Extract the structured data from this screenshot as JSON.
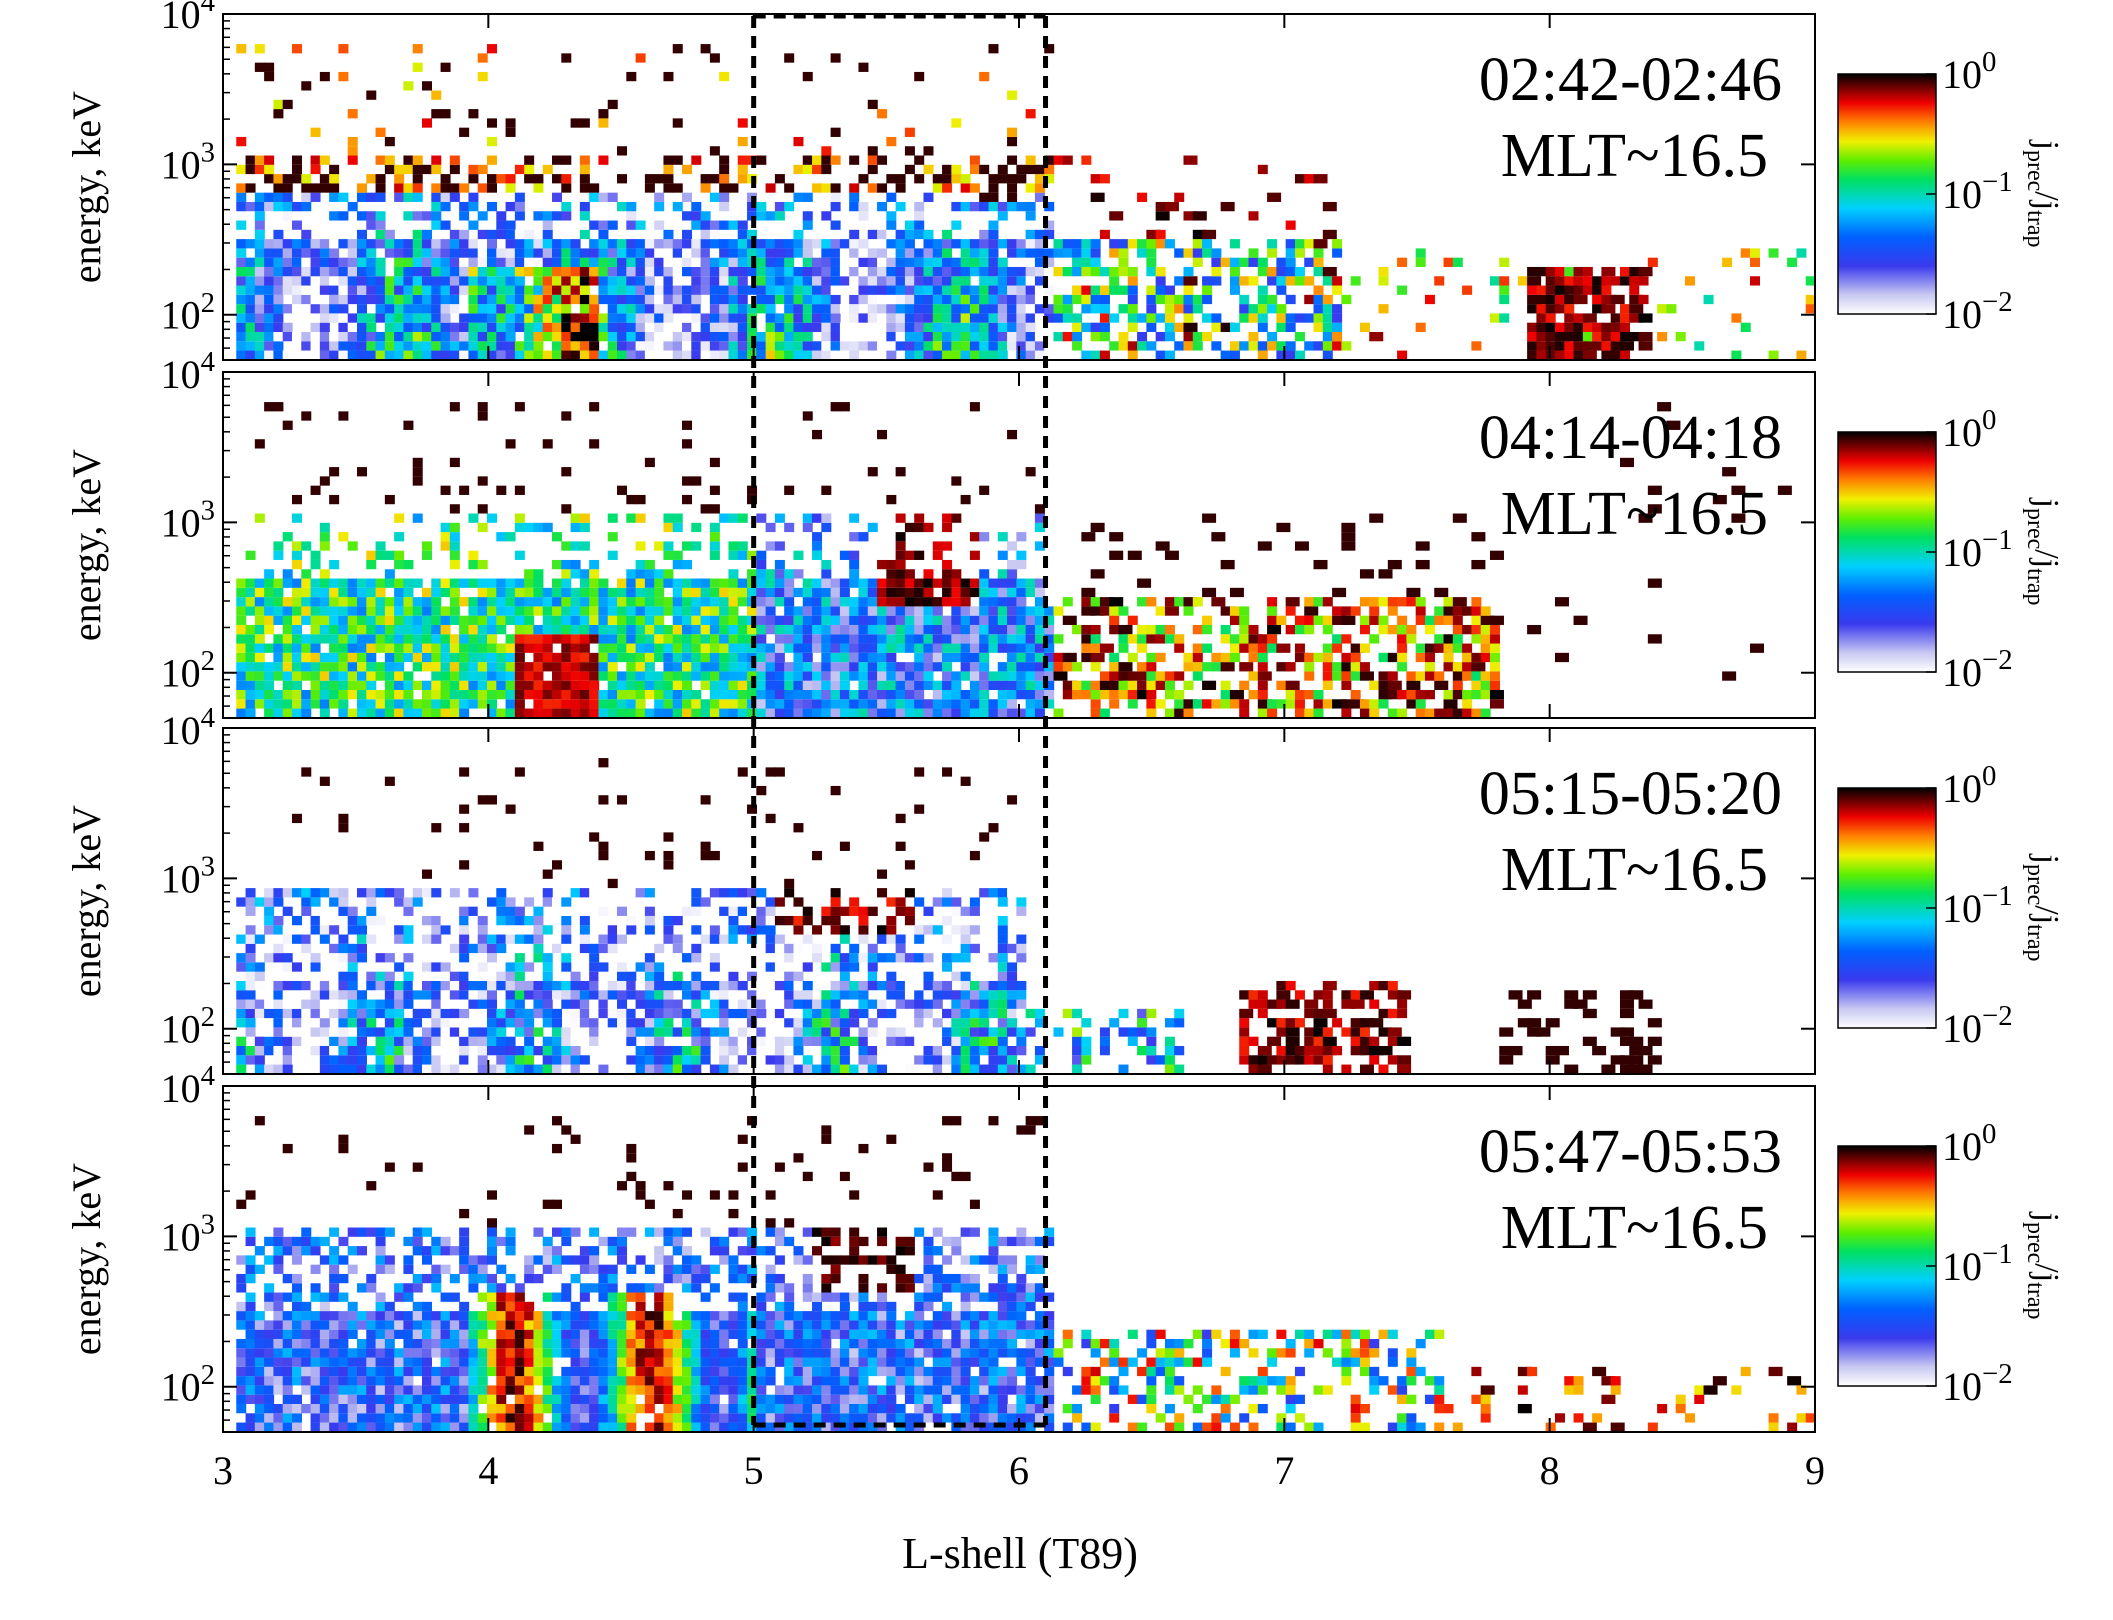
{
  "figure": {
    "xlabel": "L-shell (T89)",
    "ylabel": "energy, keV",
    "colorbar_label": "j_prec/j_trap",
    "colorbar_label_main": "j",
    "colorbar_label_sub1": "prec",
    "colorbar_label_sep": "/j",
    "colorbar_label_sub2": "trap",
    "colorbar_ticks": [
      {
        "base": "10",
        "exp": "0",
        "value": 1
      },
      {
        "base": "10",
        "exp": "−1",
        "value": 0.1
      },
      {
        "base": "10",
        "exp": "−2",
        "value": 0.01
      }
    ],
    "y_ticks": [
      {
        "base": "10",
        "exp": "2",
        "value": 100
      },
      {
        "base": "10",
        "exp": "3",
        "value": 1000
      },
      {
        "base": "10",
        "exp": "4",
        "value": 10000
      }
    ]
  },
  "chart_data": [
    {
      "type": "heatmap",
      "title": "02:42-02:46",
      "subtitle": "MLT~16.5",
      "xlim": [
        3,
        9
      ],
      "ylim": [
        50,
        10000
      ],
      "yscale": "log",
      "x_ticks": [
        3,
        4,
        5,
        6,
        7,
        8,
        9
      ],
      "color_scale": "log",
      "color_range": [
        0.01,
        1
      ],
      "highlight_box_L": [
        5.0,
        6.1
      ]
    },
    {
      "type": "heatmap",
      "title": "04:14-04:18",
      "subtitle": "MLT~16.5",
      "xlim": [
        3,
        9
      ],
      "ylim": [
        50,
        10000
      ],
      "yscale": "log",
      "x_ticks": [
        3,
        4,
        5,
        6,
        7,
        8,
        9
      ],
      "color_scale": "log",
      "color_range": [
        0.01,
        1
      ],
      "highlight_box_L": [
        5.0,
        6.1
      ]
    },
    {
      "type": "heatmap",
      "title": "05:15-05:20",
      "subtitle": "MLT~16.5",
      "xlim": [
        3,
        9
      ],
      "ylim": [
        50,
        10000
      ],
      "yscale": "log",
      "x_ticks": [
        3,
        4,
        5,
        6,
        7,
        8,
        9
      ],
      "color_scale": "log",
      "color_range": [
        0.01,
        1
      ],
      "highlight_box_L": [
        5.0,
        6.1
      ]
    },
    {
      "type": "heatmap",
      "title": "05:47-05:53",
      "subtitle": "MLT~16.5",
      "xlim": [
        3,
        9
      ],
      "ylim": [
        50,
        10000
      ],
      "yscale": "log",
      "x_ticks": [
        3,
        4,
        5,
        6,
        7,
        8,
        9
      ],
      "color_scale": "log",
      "color_range": [
        0.01,
        1
      ],
      "highlight_box_L": [
        5.0,
        6.1
      ]
    }
  ]
}
